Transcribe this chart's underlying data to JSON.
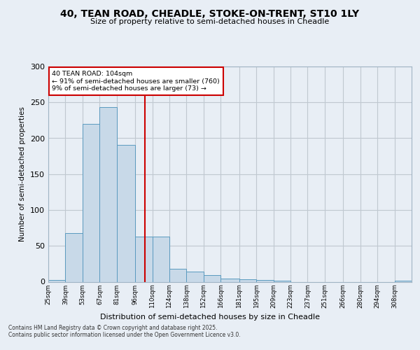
{
  "title_line1": "40, TEAN ROAD, CHEADLE, STOKE-ON-TRENT, ST10 1LY",
  "title_line2": "Size of property relative to semi-detached houses in Cheadle",
  "xlabel": "Distribution of semi-detached houses by size in Cheadle",
  "ylabel": "Number of semi-detached properties",
  "footnote": "Contains HM Land Registry data © Crown copyright and database right 2025.\nContains public sector information licensed under the Open Government Licence v3.0.",
  "annotation_title": "40 TEAN ROAD: 104sqm",
  "annotation_line1": "← 91% of semi-detached houses are smaller (760)",
  "annotation_line2": "9% of semi-detached houses are larger (73) →",
  "subject_size": 104,
  "bar_left_edges": [
    25,
    39,
    53,
    67,
    81,
    96,
    110,
    124,
    138,
    152,
    166,
    181,
    195,
    209,
    223,
    237,
    251,
    266,
    280,
    294,
    308
  ],
  "bar_heights": [
    2,
    68,
    220,
    243,
    191,
    63,
    63,
    18,
    14,
    9,
    4,
    3,
    2,
    1,
    0,
    0,
    0,
    0,
    0,
    0,
    1
  ],
  "tick_labels": [
    "25sqm",
    "39sqm",
    "53sqm",
    "67sqm",
    "81sqm",
    "96sqm",
    "110sqm",
    "124sqm",
    "138sqm",
    "152sqm",
    "166sqm",
    "181sqm",
    "195sqm",
    "209sqm",
    "223sqm",
    "237sqm",
    "251sqm",
    "266sqm",
    "280sqm",
    "294sqm",
    "308sqm"
  ],
  "bar_color": "#c8d9e8",
  "bar_edge_color": "#5a9abf",
  "vline_color": "#cc0000",
  "annotation_box_color": "#cc0000",
  "grid_color": "#c0c8d0",
  "background_color": "#e8eef5",
  "ylim": [
    0,
    300
  ],
  "yticks": [
    0,
    50,
    100,
    150,
    200,
    250,
    300
  ]
}
